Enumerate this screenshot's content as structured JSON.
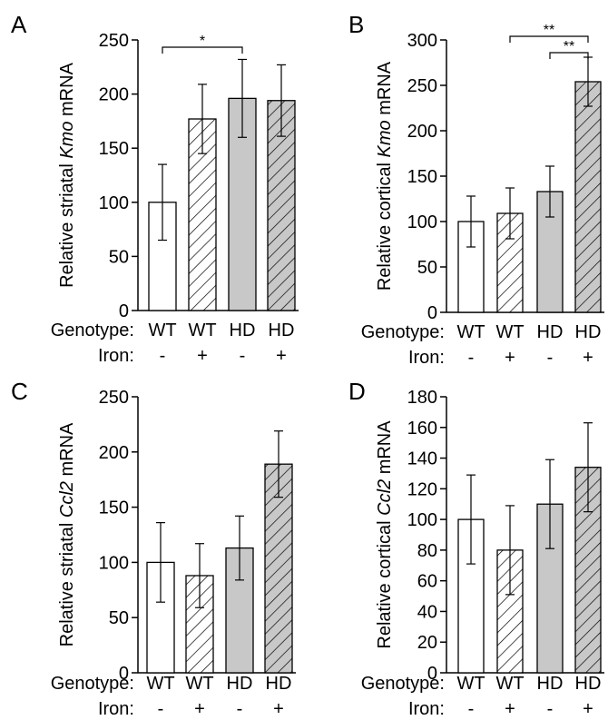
{
  "colors": {
    "wt_fill": "#ffffff",
    "hd_fill": "#c8c8c8",
    "stroke": "#000000"
  },
  "row_labels": {
    "genotype": "Genotype:",
    "iron": "Iron:"
  },
  "chart_data": [
    {
      "panel": "A",
      "type": "bar",
      "ylabel_prefix": "Relative striatal ",
      "ylabel_gene": "Kmo",
      "ylabel_suffix": " mRNA",
      "ylim": [
        0,
        250
      ],
      "yticks": [
        0,
        50,
        100,
        150,
        200,
        250
      ],
      "categories": [
        "WT",
        "WT",
        "HD",
        "HD"
      ],
      "iron": [
        "-",
        "+",
        "-",
        "+"
      ],
      "hatched": [
        false,
        true,
        false,
        true
      ],
      "values": [
        100,
        177,
        196,
        194
      ],
      "errors": [
        35,
        32,
        36,
        33
      ],
      "significance": [
        {
          "from": 0,
          "to": 2,
          "label": "*"
        }
      ]
    },
    {
      "panel": "B",
      "type": "bar",
      "ylabel_prefix": "Relative cortical ",
      "ylabel_gene": "Kmo",
      "ylabel_suffix": " mRNA",
      "ylim": [
        0,
        300
      ],
      "yticks": [
        0,
        50,
        100,
        150,
        200,
        250,
        300
      ],
      "categories": [
        "WT",
        "WT",
        "HD",
        "HD"
      ],
      "iron": [
        "-",
        "+",
        "-",
        "+"
      ],
      "hatched": [
        false,
        true,
        false,
        true
      ],
      "values": [
        100,
        109,
        133,
        254
      ],
      "errors": [
        28,
        28,
        28,
        27
      ],
      "significance": [
        {
          "from": 1,
          "to": 3,
          "label": "**"
        },
        {
          "from": 2,
          "to": 3,
          "label": "**"
        }
      ]
    },
    {
      "panel": "C",
      "type": "bar",
      "ylabel_prefix": "Relative striatal ",
      "ylabel_gene": "Ccl2",
      "ylabel_suffix": " mRNA",
      "ylim": [
        0,
        250
      ],
      "yticks": [
        0,
        50,
        100,
        150,
        200,
        250
      ],
      "categories": [
        "WT",
        "WT",
        "HD",
        "HD"
      ],
      "iron": [
        "-",
        "+",
        "-",
        "+"
      ],
      "hatched": [
        false,
        true,
        false,
        true
      ],
      "values": [
        100,
        88,
        113,
        189
      ],
      "errors": [
        36,
        29,
        29,
        30
      ],
      "significance": []
    },
    {
      "panel": "D",
      "type": "bar",
      "ylabel_prefix": "Relative cortical ",
      "ylabel_gene": "Ccl2",
      "ylabel_suffix": " mRNA",
      "ylim": [
        0,
        180
      ],
      "yticks": [
        0,
        20,
        40,
        60,
        80,
        100,
        120,
        140,
        160,
        180
      ],
      "categories": [
        "WT",
        "WT",
        "HD",
        "HD"
      ],
      "iron": [
        "-",
        "+",
        "-",
        "+"
      ],
      "hatched": [
        false,
        true,
        false,
        true
      ],
      "values": [
        100,
        80,
        110,
        134
      ],
      "errors": [
        29,
        29,
        29,
        29
      ],
      "significance": []
    }
  ]
}
